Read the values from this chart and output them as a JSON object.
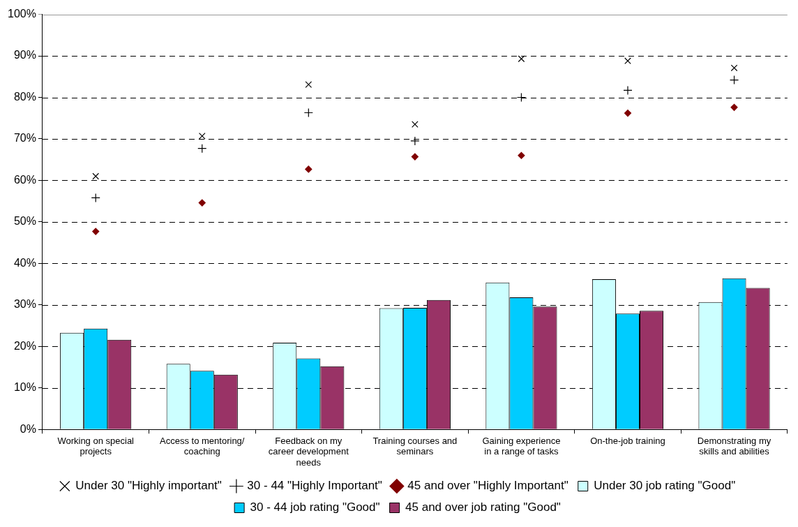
{
  "chart_data": {
    "type": "bar",
    "categories": [
      "Working on special projects",
      "Access to mentoring/ coaching",
      "Feedback on my career development needs",
      "Training courses and seminars",
      "Gaining experience in a range of tasks",
      "On-the-job training",
      "Demonstrating my skills and abilities"
    ],
    "series": [
      {
        "name": "Under 30 job rating \"Good\"",
        "color": "#ccffff",
        "values": [
          23.3,
          15.8,
          20.9,
          29.2,
          35.4,
          36.2,
          30.7
        ]
      },
      {
        "name": "30 - 44 job rating \"Good\"",
        "color": "#00ccff",
        "values": [
          24.3,
          14.1,
          17.1,
          29.3,
          31.8,
          27.9,
          36.4
        ]
      },
      {
        "name": "45 and over job rating \"Good\"",
        "color": "#993366",
        "values": [
          21.6,
          13.2,
          15.2,
          31.2,
          29.6,
          28.6,
          34.1
        ]
      },
      {
        "name": "Under 30 \"Highly important\"",
        "type": "scatter",
        "marker": "x",
        "color": "#000000",
        "values": [
          61.0,
          70.7,
          83.1,
          73.5,
          89.3,
          88.8,
          87.1
        ]
      },
      {
        "name": "30 - 44 \"Highly Important\"",
        "type": "scatter",
        "marker": "cross",
        "color": "#000000",
        "values": [
          55.8,
          67.7,
          76.3,
          69.5,
          80.0,
          81.7,
          84.2
        ]
      },
      {
        "name": "45 and over \"Highly Important\"",
        "type": "scatter",
        "marker": "diamond",
        "color": "#800000",
        "values": [
          47.7,
          54.6,
          62.7,
          65.7,
          66.0,
          76.2,
          77.6
        ]
      }
    ],
    "ylim": [
      0,
      100
    ],
    "yticks": [
      {
        "value": 0,
        "label": "0%"
      },
      {
        "value": 10,
        "label": "10%"
      },
      {
        "value": 20,
        "label": "20%"
      },
      {
        "value": 30,
        "label": "30%"
      },
      {
        "value": 40,
        "label": "40%"
      },
      {
        "value": 50,
        "label": "50%"
      },
      {
        "value": 60,
        "label": "60%"
      },
      {
        "value": 70,
        "label": "70%"
      },
      {
        "value": 80,
        "label": "80%"
      },
      {
        "value": 90,
        "label": "90%"
      },
      {
        "value": 100,
        "label": "100%"
      }
    ],
    "grid": "y",
    "legend": "bottom"
  }
}
